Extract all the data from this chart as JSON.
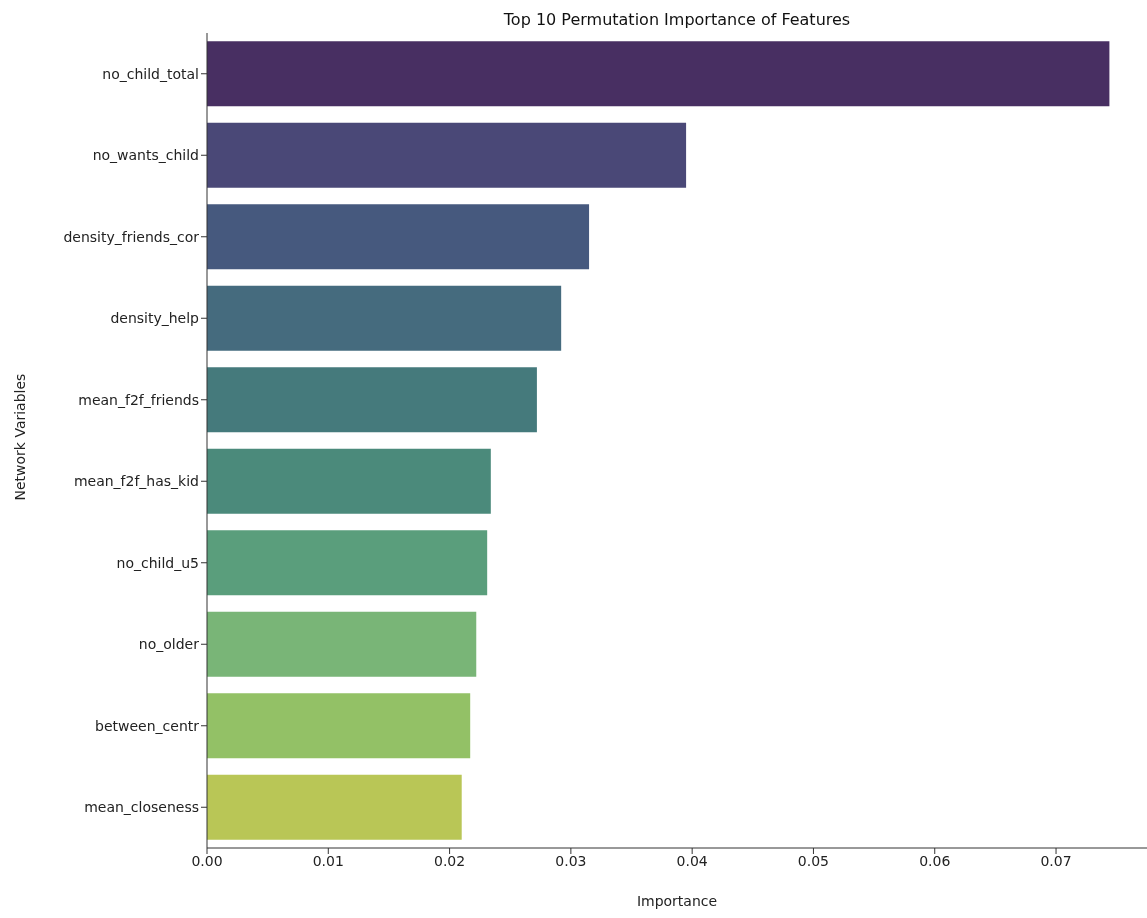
{
  "chart_data": {
    "type": "bar",
    "orientation": "horizontal",
    "title": "Top 10 Permutation Importance of Features",
    "xlabel": "Importance",
    "ylabel": "Network Variables",
    "categories": [
      "no_child_total",
      "no_wants_child",
      "density_friends_cor",
      "density_help",
      "mean_f2f_friends",
      "mean_f2f_has_kid",
      "no_child_u5",
      "no_older",
      "between_centr",
      "mean_closeness"
    ],
    "values": [
      0.0744,
      0.0395,
      0.0315,
      0.0292,
      0.0272,
      0.0234,
      0.0231,
      0.0222,
      0.0217,
      0.021
    ],
    "colors": [
      "#482f62",
      "#4a4877",
      "#46597e",
      "#456b7e",
      "#457a7c",
      "#4b8a7b",
      "#5a9e7c",
      "#79b577",
      "#93c166",
      "#b9c656"
    ],
    "xlim": [
      0,
      0.0775
    ],
    "xticks": [
      {
        "value": 0,
        "label": "0.00"
      },
      0.01,
      0.02,
      0.03,
      0.04,
      0.05,
      0.06,
      0.07
    ],
    "grid": false
  }
}
